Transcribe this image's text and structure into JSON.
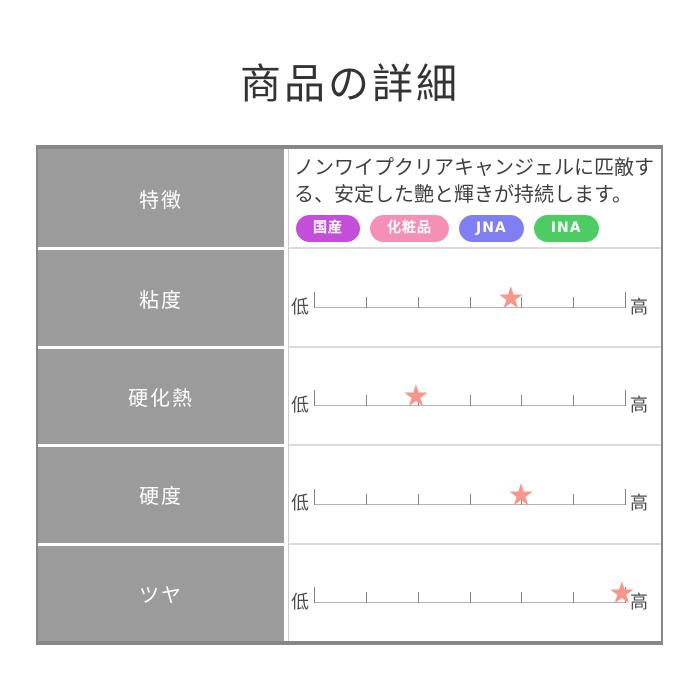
{
  "page": {
    "title": "商品の詳細",
    "background_color": "#ffffff"
  },
  "table": {
    "label_column_bg": "#9b9b9b",
    "label_text_color": "#ffffff",
    "rows": [
      {
        "type": "feature",
        "label": "特徴",
        "text": "ノンワイプクリアキャンジェルに匹敵する、安定した艶と輝きが持続します。",
        "badges": [
          {
            "label": "国産",
            "color": "#c44ed9"
          },
          {
            "label": "化粧品",
            "color": "#f48fb6"
          },
          {
            "label": "JNA",
            "color": "#7f7ff1"
          },
          {
            "label": "INA",
            "color": "#4ccc63"
          }
        ]
      },
      {
        "type": "scale",
        "label": "粘度",
        "low_label": "低",
        "high_label": "高",
        "star_position_pct": 63.3,
        "rating": {
          "value": 4,
          "max": 6
        }
      },
      {
        "type": "scale",
        "label": "硬化熱",
        "low_label": "低",
        "high_label": "高",
        "star_position_pct": 32.8,
        "rating": {
          "value": 2,
          "max": 6
        }
      },
      {
        "type": "scale",
        "label": "硬度",
        "low_label": "低",
        "high_label": "高",
        "star_position_pct": 66.6,
        "rating": {
          "value": 4,
          "max": 6
        }
      },
      {
        "type": "scale",
        "label": "ツヤ",
        "low_label": "低",
        "high_label": "高",
        "star_position_pct": 99.0,
        "rating": {
          "value": 6,
          "max": 6
        }
      }
    ]
  },
  "scale_style": {
    "tick_count": 7,
    "star_glyph": "★",
    "star_color": "#f7968b",
    "line_color": "#b3b3b3",
    "tick_color": "#828282"
  }
}
